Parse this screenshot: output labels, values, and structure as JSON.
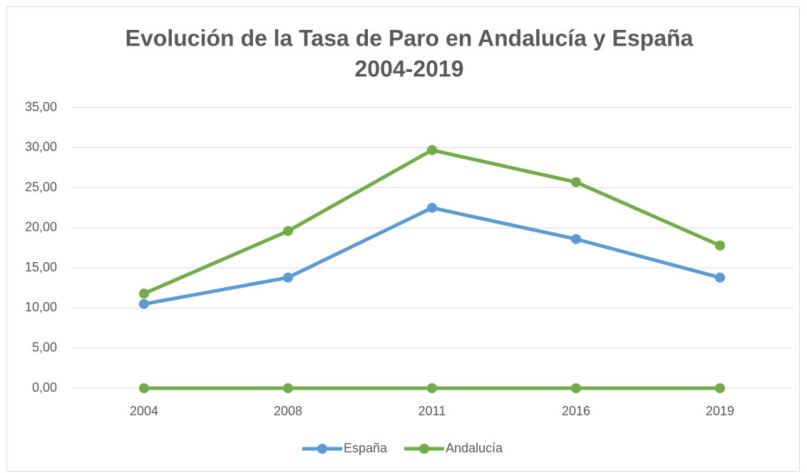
{
  "chart_data": {
    "type": "line",
    "title": [
      "Evolución de la Tasa de Paro en Andalucía y España",
      "2004-2019"
    ],
    "categories": [
      "2004",
      "2008",
      "2011",
      "2016",
      "2019"
    ],
    "series": [
      {
        "name": "España",
        "color": "#5b9bd5",
        "values": [
          10.5,
          13.8,
          22.5,
          18.6,
          13.8
        ]
      },
      {
        "name": "Andalucía",
        "color": "#70ad47",
        "values": [
          11.8,
          19.6,
          29.7,
          25.7,
          17.8
        ]
      },
      {
        "color": "#70ad47",
        "values": [
          0,
          0,
          0,
          0,
          0
        ]
      }
    ],
    "ylim": [
      0,
      35
    ],
    "yticks": [
      {
        "value": 0,
        "label": "0,00"
      },
      {
        "value": 5,
        "label": "5,00"
      },
      {
        "value": 10,
        "label": "10,00"
      },
      {
        "value": 15,
        "label": "15,00"
      },
      {
        "value": 20,
        "label": "20,00"
      },
      {
        "value": 25,
        "label": "25,00"
      },
      {
        "value": 30,
        "label": "30,00"
      },
      {
        "value": 35,
        "label": "35,00"
      }
    ],
    "grid": true,
    "legend": "bottom"
  }
}
